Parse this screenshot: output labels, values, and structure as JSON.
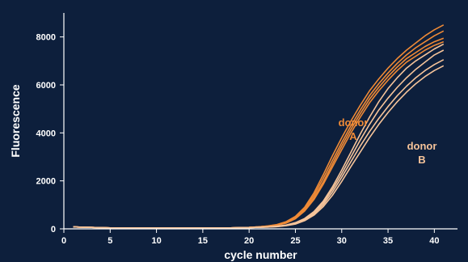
{
  "chart_data": {
    "type": "line",
    "title": "",
    "xlabel": "cycle number",
    "ylabel": "Fluorescence",
    "xlim": [
      0,
      42
    ],
    "ylim": [
      0,
      9000
    ],
    "xticks": [
      0,
      5,
      10,
      15,
      20,
      25,
      30,
      35,
      40
    ],
    "yticks": [
      0,
      2000,
      4000,
      6000,
      8000
    ],
    "grid": false,
    "legend": "none",
    "x": [
      1,
      2,
      3,
      4,
      5,
      6,
      7,
      8,
      9,
      10,
      11,
      12,
      13,
      14,
      15,
      16,
      17,
      18,
      19,
      20,
      21,
      22,
      23,
      24,
      25,
      26,
      27,
      28,
      29,
      30,
      31,
      32,
      33,
      34,
      35,
      36,
      37,
      38,
      39,
      40,
      41
    ],
    "groups": [
      {
        "label_line1": "donor",
        "label_line2": "A",
        "color": "#ef8a36",
        "series": [
          {
            "values": [
              80,
              70,
              60,
              50,
              40,
              40,
              40,
              40,
              40,
              40,
              40,
              40,
              40,
              40,
              40,
              40,
              40,
              40,
              50,
              60,
              80,
              120,
              180,
              300,
              520,
              900,
              1500,
              2250,
              3050,
              3800,
              4500,
              5150,
              5750,
              6250,
              6700,
              7100,
              7450,
              7750,
              8050,
              8300,
              8500
            ]
          },
          {
            "values": [
              80,
              70,
              60,
              50,
              40,
              40,
              40,
              40,
              40,
              40,
              40,
              40,
              40,
              40,
              40,
              40,
              40,
              40,
              50,
              60,
              80,
              115,
              170,
              280,
              490,
              850,
              1400,
              2100,
              2850,
              3600,
              4300,
              4950,
              5550,
              6050,
              6500,
              6900,
              7250,
              7550,
              7800,
              8050,
              8250
            ]
          },
          {
            "values": [
              80,
              70,
              60,
              50,
              40,
              40,
              40,
              40,
              40,
              40,
              40,
              40,
              40,
              40,
              40,
              40,
              40,
              40,
              50,
              60,
              80,
              110,
              160,
              260,
              450,
              790,
              1300,
              1950,
              2700,
              3450,
              4150,
              4800,
              5400,
              5900,
              6350,
              6750,
              7100,
              7350,
              7600,
              7800,
              7950
            ]
          },
          {
            "values": [
              80,
              70,
              60,
              50,
              40,
              40,
              40,
              40,
              40,
              40,
              40,
              40,
              40,
              40,
              40,
              40,
              40,
              40,
              50,
              60,
              80,
              110,
              150,
              240,
              420,
              740,
              1220,
              1850,
              2580,
              3300,
              4000,
              4650,
              5250,
              5750,
              6200,
              6600,
              6950,
              7200,
              7450,
              7650,
              7800
            ]
          }
        ]
      },
      {
        "label_line1": "donor",
        "label_line2": "B",
        "color": "#f6c49a",
        "series": [
          {
            "values": [
              80,
              70,
              60,
              50,
              40,
              40,
              40,
              40,
              40,
              40,
              40,
              40,
              40,
              40,
              40,
              40,
              40,
              40,
              50,
              55,
              65,
              80,
              110,
              160,
              260,
              430,
              720,
              1150,
              1750,
              2450,
              3200,
              3950,
              4650,
              5300,
              5850,
              6300,
              6700,
              7000,
              7250,
              7500,
              7700
            ]
          },
          {
            "values": [
              80,
              70,
              60,
              50,
              40,
              40,
              40,
              40,
              40,
              40,
              40,
              40,
              40,
              40,
              40,
              40,
              40,
              40,
              50,
              55,
              65,
              80,
              100,
              150,
              240,
              400,
              670,
              1080,
              1650,
              2300,
              3000,
              3700,
              4350,
              4950,
              5450,
              5900,
              6300,
              6650,
              6950,
              7250,
              7450
            ]
          },
          {
            "values": [
              80,
              70,
              60,
              50,
              40,
              40,
              40,
              40,
              40,
              40,
              40,
              40,
              40,
              40,
              40,
              40,
              40,
              40,
              50,
              55,
              65,
              75,
              95,
              140,
              220,
              370,
              620,
              1000,
              1530,
              2150,
              2800,
              3450,
              4050,
              4600,
              5100,
              5550,
              5950,
              6300,
              6600,
              6850,
              7050
            ]
          },
          {
            "values": [
              80,
              70,
              60,
              50,
              40,
              40,
              40,
              40,
              40,
              40,
              40,
              40,
              40,
              40,
              40,
              40,
              40,
              40,
              50,
              55,
              65,
              75,
              90,
              130,
              200,
              340,
              570,
              920,
              1400,
              1980,
              2600,
              3200,
              3800,
              4350,
              4850,
              5300,
              5700,
              6050,
              6350,
              6600,
              6800
            ]
          }
        ]
      }
    ]
  }
}
